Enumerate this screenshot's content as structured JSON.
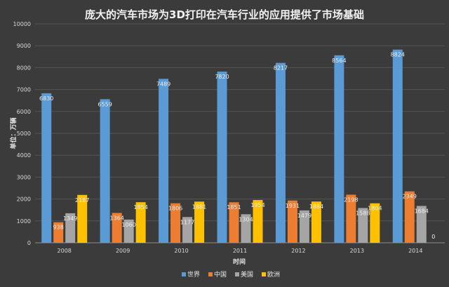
{
  "chart_data": {
    "type": "bar",
    "title": "庞大的汽车市场为3D打印在汽车行业的应用提供了市场基础",
    "xlabel": "时间",
    "ylabel": "单位：万辆",
    "ylim": [
      0,
      10000
    ],
    "yticks": [
      0,
      1000,
      2000,
      3000,
      4000,
      5000,
      6000,
      7000,
      8000,
      9000,
      10000
    ],
    "grid": true,
    "legend_position": "bottom",
    "categories": [
      "2008",
      "2009",
      "2010",
      "2011",
      "2012",
      "2013",
      "2014"
    ],
    "series": [
      {
        "name": "世界",
        "color": "#5b9bd5",
        "values": [
          6830,
          6559,
          7489,
          7820,
          8217,
          8564,
          8824
        ]
      },
      {
        "name": "中国",
        "color": "#ed7d31",
        "values": [
          938,
          1364,
          1806,
          1851,
          1931,
          2198,
          2349
        ]
      },
      {
        "name": "美国",
        "color": "#a5a5a5",
        "values": [
          1349,
          1060,
          1177,
          1304,
          1479,
          1588,
          1684
        ]
      },
      {
        "name": "欧洲",
        "color": "#ffc000",
        "values": [
          2187,
          1854,
          1881,
          1954,
          1884,
          1804,
          0
        ]
      }
    ]
  }
}
